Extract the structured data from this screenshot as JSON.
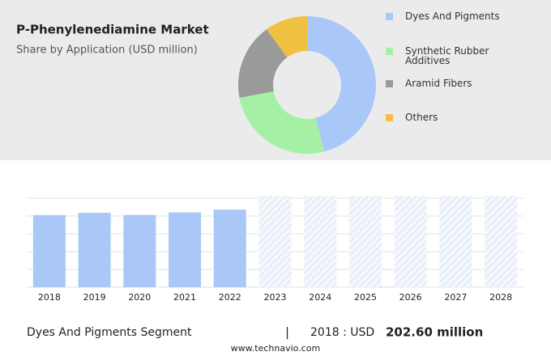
{
  "chart_data": [
    {
      "type": "pie",
      "title": "P-Phenylenediamine Market",
      "subtitle": "Share by Application (USD million)",
      "categories": [
        "Dyes And Pigments",
        "Synthetic Rubber Additives",
        "Aramid Fibers",
        "Others"
      ],
      "values": [
        46,
        26,
        18,
        10
      ],
      "colors": [
        "#a9c8f7",
        "#a6f0a6",
        "#9a9a9a",
        "#f0c043"
      ]
    },
    {
      "type": "bar",
      "categories": [
        "2018",
        "2019",
        "2020",
        "2021",
        "2022",
        "2023",
        "2024",
        "2025",
        "2026",
        "2027",
        "2028"
      ],
      "values": [
        202.6,
        209,
        203,
        210,
        218,
        null,
        null,
        null,
        null,
        null,
        null
      ],
      "color": "#a9c8f7",
      "ylim": [
        0,
        250
      ],
      "yticks": [
        0,
        50,
        100,
        150,
        200,
        250
      ],
      "grid": true
    }
  ],
  "footer": {
    "segment": "Dyes And Pigments Segment",
    "separator": "|",
    "highlight_label": "2018 : USD",
    "highlight_value": "202.60 million",
    "source": "www.technavio.com"
  }
}
